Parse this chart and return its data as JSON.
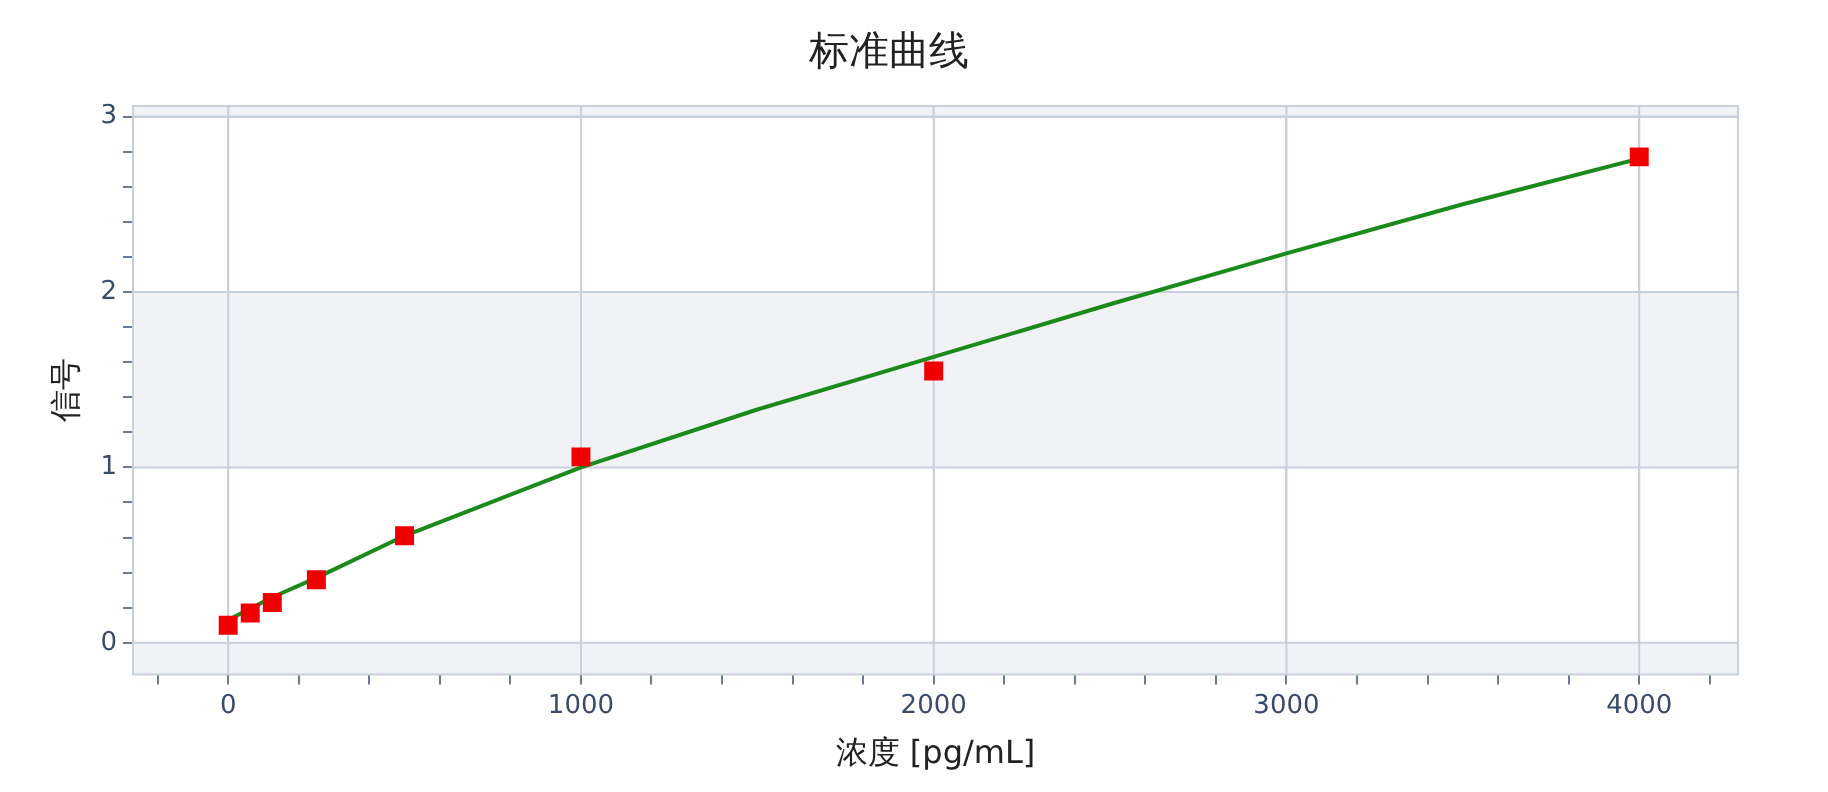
{
  "chart_data": {
    "type": "scatter",
    "title": "标准曲线",
    "xlabel": "浓度 [pg/mL]",
    "ylabel": "信号",
    "xlim": [
      -270,
      4280
    ],
    "ylim": [
      -0.18,
      3.06
    ],
    "xticks": [
      {
        "value": -200,
        "label": null
      },
      0,
      {
        "value": 200,
        "label": null
      },
      {
        "value": 400,
        "label": null
      },
      {
        "value": 600,
        "label": null
      },
      {
        "value": 800,
        "label": null
      },
      1000,
      {
        "value": 1200,
        "label": null
      },
      {
        "value": 1400,
        "label": null
      },
      {
        "value": 1600,
        "label": null
      },
      {
        "value": 1800,
        "label": null
      },
      2000,
      {
        "value": 2200,
        "label": null
      },
      {
        "value": 2400,
        "label": null
      },
      {
        "value": 2600,
        "label": null
      },
      {
        "value": 2800,
        "label": null
      },
      3000,
      {
        "value": 3200,
        "label": null
      },
      {
        "value": 3400,
        "label": null
      },
      {
        "value": 3600,
        "label": null
      },
      {
        "value": 3800,
        "label": null
      },
      4000,
      {
        "value": 4200,
        "label": null
      }
    ],
    "yticks": [
      0,
      {
        "value": 0.2,
        "label": null
      },
      {
        "value": 0.4,
        "label": null
      },
      {
        "value": 0.6,
        "label": null
      },
      {
        "value": 0.8,
        "label": null
      },
      1,
      {
        "value": 1.2,
        "label": null
      },
      {
        "value": 1.4,
        "label": null
      },
      {
        "value": 1.6,
        "label": null
      },
      {
        "value": 1.8,
        "label": null
      },
      2,
      {
        "value": 2.2,
        "label": null
      },
      {
        "value": 2.4,
        "label": null
      },
      {
        "value": 2.6,
        "label": null
      },
      {
        "value": 2.8,
        "label": null
      },
      3
    ],
    "grid": true,
    "legend": false,
    "bands": [
      {
        "axis": "y",
        "from": -0.18,
        "to": 0,
        "color": "#f0f2f6"
      },
      {
        "axis": "y",
        "from": 1,
        "to": 2,
        "color": "#f0f2f6"
      },
      {
        "axis": "y",
        "from": 3,
        "to": 3.06,
        "color": "#f0f2f6"
      }
    ],
    "series": [
      {
        "type": "line",
        "color": "#1a8a1a",
        "marker": "none",
        "line_style": "solid",
        "x": [
          0,
          125,
          250,
          500,
          1000,
          1500,
          2000,
          2500,
          3000,
          3500,
          4000
        ],
        "values": [
          0.13,
          0.26,
          0.37,
          0.61,
          1.0,
          1.33,
          1.63,
          1.93,
          2.22,
          2.5,
          2.76
        ]
      },
      {
        "type": "scatter",
        "color": "#ee0000",
        "marker": "square",
        "x": [
          0,
          62.5,
          125,
          250,
          500,
          1000,
          2000,
          4000
        ],
        "values": [
          0.1,
          0.17,
          0.23,
          0.36,
          0.61,
          1.06,
          1.55,
          2.77
        ]
      }
    ]
  }
}
